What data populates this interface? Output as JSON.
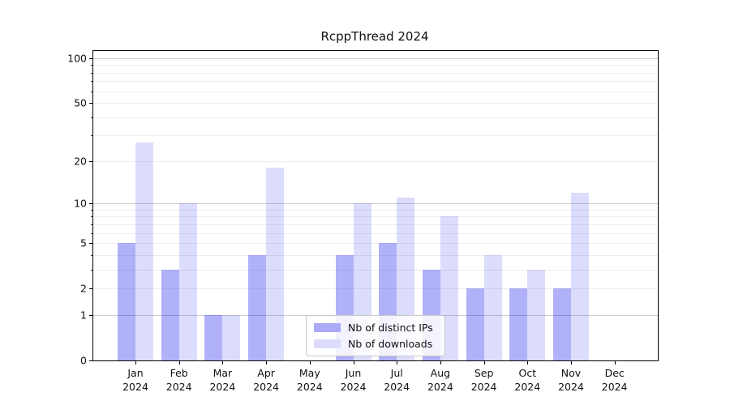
{
  "title": "RcppThread 2024",
  "chart_data": {
    "type": "bar",
    "title": "RcppThread 2024",
    "categories": [
      "Jan 2024",
      "Feb 2024",
      "Mar 2024",
      "Apr 2024",
      "May 2024",
      "Jun 2024",
      "Jul 2024",
      "Aug 2024",
      "Sep 2024",
      "Oct 2024",
      "Nov 2024",
      "Dec 2024"
    ],
    "series": [
      {
        "name": "Nb of distinct IPs",
        "color": "#aaaaf7",
        "fill": "rgba(17,17,238,0.33)",
        "values": [
          5,
          3,
          1,
          4,
          0,
          4,
          5,
          3,
          2,
          2,
          2,
          0
        ]
      },
      {
        "name": "Nb of downloads",
        "color": "#dcdcfa",
        "fill": "rgba(17,17,238,0.145)",
        "values": [
          27,
          10,
          1,
          18,
          0,
          10,
          11,
          8,
          4,
          3,
          12,
          0
        ]
      }
    ],
    "y_scale": "log1p",
    "y_ticks": [
      0,
      1,
      2,
      5,
      10,
      20,
      50,
      100
    ],
    "y_minor_gridlines": [
      2,
      3,
      4,
      5,
      6,
      7,
      8,
      9,
      20,
      30,
      40,
      50,
      60,
      70,
      80,
      90
    ],
    "y_major_gridlines": [
      1,
      10,
      100
    ],
    "ylim": [
      0,
      111
    ],
    "grid": "both",
    "grid_major_color": "#cdcdcd",
    "grid_minor_color": "#ededef",
    "legend_position": "lower-center-inside",
    "xlabel": "",
    "ylabel": ""
  }
}
